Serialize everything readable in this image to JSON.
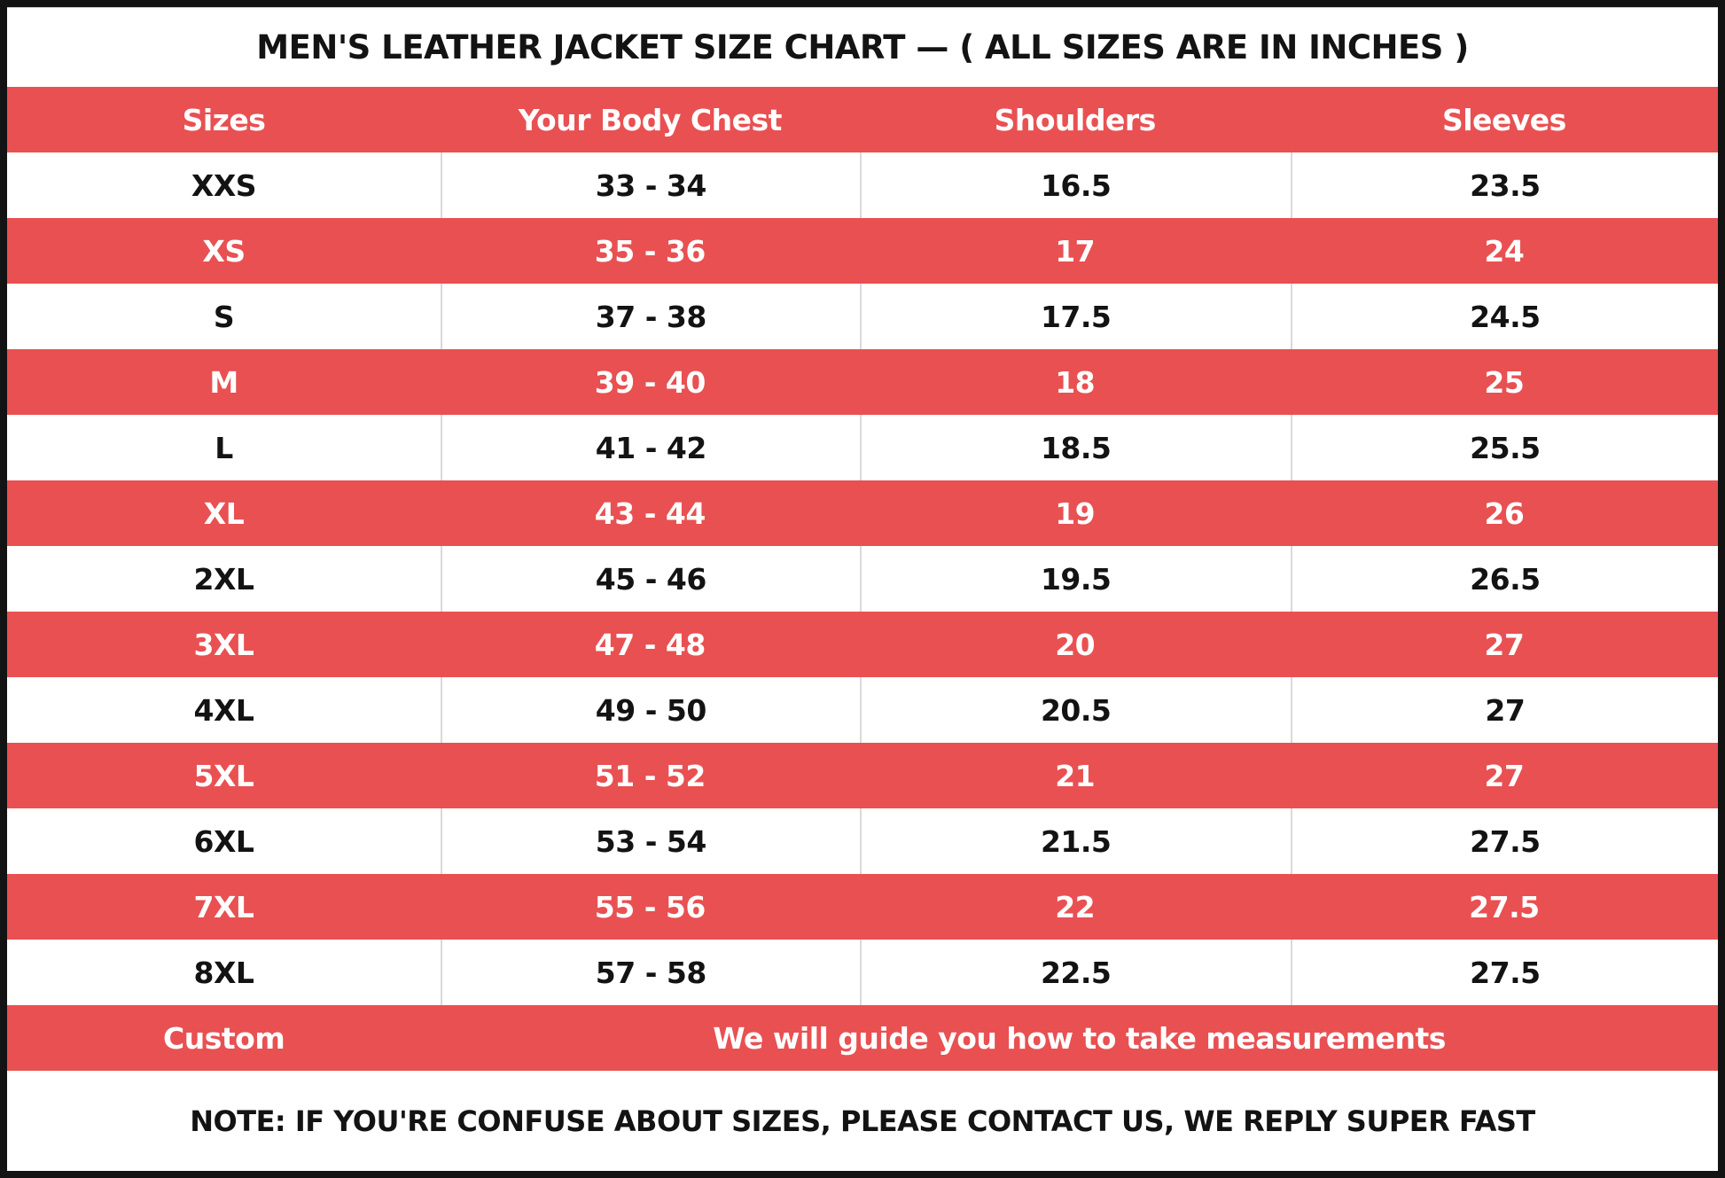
{
  "title": "MEN'S LEATHER JACKET SIZE CHART — ( ALL SIZES ARE IN INCHES )",
  "columns": [
    "Sizes",
    "Your Body Chest",
    "Shoulders",
    "Sleeves"
  ],
  "rows": [
    {
      "cells": [
        "XXS",
        "33 - 34",
        "16.5",
        "23.5"
      ]
    },
    {
      "cells": [
        "XS",
        "35 - 36",
        "17",
        "24"
      ]
    },
    {
      "cells": [
        "S",
        "37 - 38",
        "17.5",
        "24.5"
      ]
    },
    {
      "cells": [
        "M",
        "39 - 40",
        "18",
        "25"
      ]
    },
    {
      "cells": [
        "L",
        "41 - 42",
        "18.5",
        "25.5"
      ]
    },
    {
      "cells": [
        "XL",
        "43 - 44",
        "19",
        "26"
      ]
    },
    {
      "cells": [
        "2XL",
        "45 - 46",
        "19.5",
        "26.5"
      ]
    },
    {
      "cells": [
        "3XL",
        "47 - 48",
        "20",
        "27"
      ]
    },
    {
      "cells": [
        "4XL",
        "49 - 50",
        "20.5",
        "27"
      ]
    },
    {
      "cells": [
        "5XL",
        "51 - 52",
        "21",
        "27"
      ]
    },
    {
      "cells": [
        "6XL",
        "53 - 54",
        "21.5",
        "27.5"
      ]
    },
    {
      "cells": [
        "7XL",
        "55 - 56",
        "22",
        "27.5"
      ]
    },
    {
      "cells": [
        "8XL",
        "57 - 58",
        "22.5",
        "27.5"
      ]
    }
  ],
  "custom_row": {
    "label": "Custom",
    "message": "We will guide you how to take measurements"
  },
  "note": "NOTE: IF YOU'RE CONFUSE ABOUT SIZES, PLEASE CONTACT US, WE REPLY SUPER FAST",
  "colors": {
    "accent_red": "#E95052",
    "divider_gray": "#D9D9D9",
    "border_black": "#131313",
    "text_on_red": "#FFFFFF",
    "text_on_white": "#131313"
  },
  "chart_data": {
    "type": "table",
    "title": "MEN'S LEATHER JACKET SIZE CHART — ( ALL SIZES ARE IN INCHES )",
    "columns": [
      "Sizes",
      "Your Body Chest",
      "Shoulders",
      "Sleeves"
    ],
    "rows": [
      [
        "XXS",
        "33 - 34",
        16.5,
        23.5
      ],
      [
        "XS",
        "35 - 36",
        17,
        24
      ],
      [
        "S",
        "37 - 38",
        17.5,
        24.5
      ],
      [
        "M",
        "39 - 40",
        18,
        25
      ],
      [
        "L",
        "41 - 42",
        18.5,
        25.5
      ],
      [
        "XL",
        "43 - 44",
        19,
        26
      ],
      [
        "2XL",
        "45 - 46",
        19.5,
        26.5
      ],
      [
        "3XL",
        "47 - 48",
        20,
        27
      ],
      [
        "4XL",
        "49 - 50",
        20.5,
        27
      ],
      [
        "5XL",
        "51 - 52",
        21,
        27
      ],
      [
        "6XL",
        "53 - 54",
        21.5,
        27.5
      ],
      [
        "7XL",
        "55 - 56",
        22,
        27.5
      ],
      [
        "8XL",
        "57 - 58",
        22.5,
        27.5
      ],
      [
        "Custom",
        "We will guide you how to take measurements",
        null,
        null
      ]
    ],
    "footer_note": "NOTE: IF YOU'RE CONFUSE ABOUT SIZES, PLEASE CONTACT US, WE REPLY SUPER FAST",
    "units": "inches",
    "row_striping": "alternating white / red starting with white at XXS; header, XS, M, XL, 3XL, 5XL, 7XL and Custom rows are red"
  }
}
